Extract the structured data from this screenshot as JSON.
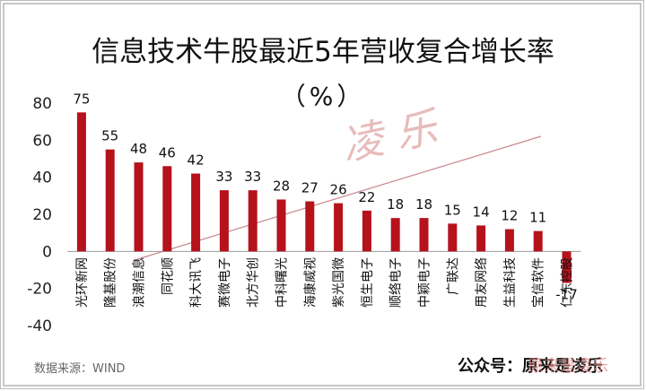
{
  "title": "信息技术牛股最近5年营收复合增长率",
  "subtitle": "（%）",
  "source": "数据来源：WIND",
  "account": "公众号：原来是凌乐",
  "watermark": "凌 乐",
  "watermark_corner": "原来是凌乐",
  "colors": {
    "bar": "#b5121b",
    "trend": "#c8878c",
    "axis": "#999999"
  },
  "chart_data": {
    "type": "bar",
    "title": "信息技术牛股最近5年营收复合增长率",
    "unit": "（%）",
    "categories": [
      "光环新网",
      "隆基股份",
      "浪潮信息",
      "同花顺",
      "科大讯飞",
      "赛微电子",
      "北方华创",
      "中科曙光",
      "海康威视",
      "紫光国微",
      "恒生电子",
      "顺络电子",
      "中颖电子",
      "广联达",
      "用友网络",
      "生益科技",
      "宝信软件",
      "仁东控股"
    ],
    "values": [
      75,
      55,
      48,
      46,
      42,
      33,
      33,
      28,
      27,
      26,
      22,
      18,
      18,
      15,
      14,
      12,
      11,
      -17
    ],
    "ylim": [
      -40,
      80
    ],
    "yticks": [
      -40,
      -20,
      0,
      20,
      40,
      60,
      80
    ],
    "ytick_labels": [
      "-40",
      "-20",
      "0",
      "20",
      "40",
      "60",
      "80"
    ],
    "grid": false,
    "legend": "none"
  }
}
